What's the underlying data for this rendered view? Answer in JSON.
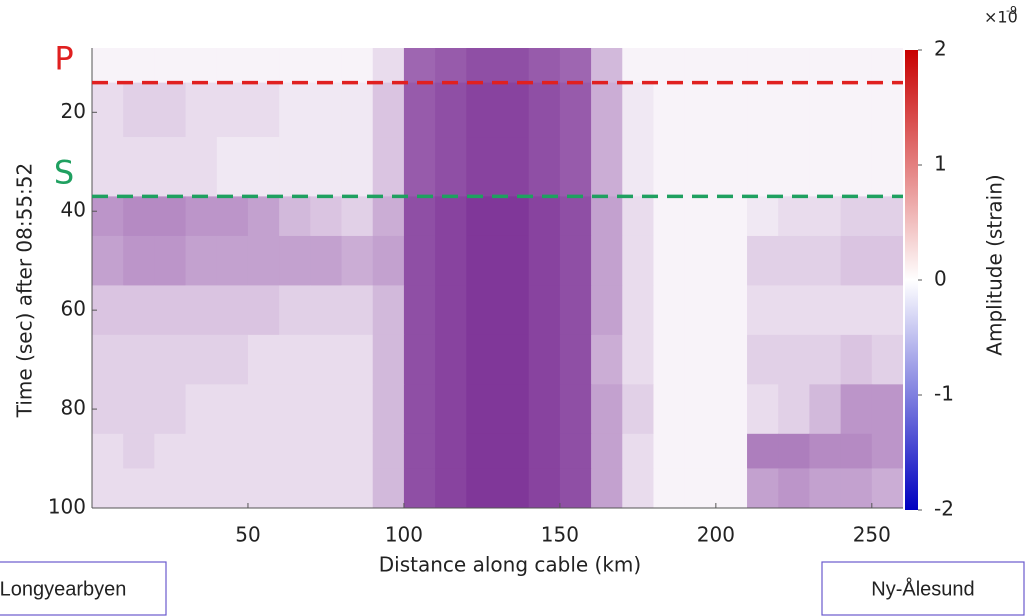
{
  "chart_data": {
    "type": "heatmap",
    "x_label": "Distance along cable (km)",
    "y_label": "Time (sec) after 08:55:52",
    "colorbar_label": "Amplitude (strain)",
    "colorbar_multiplier": "×10",
    "colorbar_exponent": "-9",
    "xlim": [
      0,
      260
    ],
    "ylim": [
      100,
      7
    ],
    "xticks": [
      50,
      100,
      150,
      200,
      250
    ],
    "yticks": [
      20,
      40,
      60,
      80,
      100
    ],
    "clim": [
      -2,
      2
    ],
    "cticks": [
      -2,
      -1,
      0,
      1,
      2
    ],
    "colormap": [
      "#0000c0",
      "#ffffff",
      "#c80000"
    ],
    "cell_color": "#6a1487",
    "x_bins": [
      0,
      10,
      20,
      30,
      40,
      50,
      60,
      70,
      80,
      90,
      100,
      110,
      120,
      130,
      140,
      150,
      160,
      170,
      180,
      190,
      200,
      210,
      220,
      230,
      240,
      250,
      260
    ],
    "y_bins": [
      7,
      14,
      25,
      37,
      45,
      55,
      65,
      75,
      85,
      92,
      100
    ],
    "values": [
      [
        0.1,
        0.1,
        0.1,
        0.1,
        0.1,
        0.1,
        0.1,
        0.1,
        0.1,
        0.3,
        1.3,
        1.4,
        1.5,
        1.5,
        1.4,
        1.3,
        0.6,
        0.1,
        0.1,
        0.1,
        0.1,
        0.1,
        0.1,
        0.1,
        0.1,
        0.1
      ],
      [
        0.3,
        0.4,
        0.4,
        0.3,
        0.3,
        0.3,
        0.2,
        0.2,
        0.2,
        0.5,
        1.4,
        1.5,
        1.6,
        1.6,
        1.5,
        1.4,
        0.7,
        0.2,
        0.1,
        0.1,
        0.1,
        0.1,
        0.1,
        0.1,
        0.1,
        0.1
      ],
      [
        0.3,
        0.3,
        0.3,
        0.3,
        0.2,
        0.2,
        0.2,
        0.2,
        0.2,
        0.5,
        1.4,
        1.5,
        1.6,
        1.6,
        1.5,
        1.4,
        0.7,
        0.2,
        0.1,
        0.1,
        0.1,
        0.1,
        0.1,
        0.1,
        0.1,
        0.1
      ],
      [
        0.9,
        1.0,
        1.0,
        0.9,
        0.9,
        0.8,
        0.6,
        0.5,
        0.4,
        0.7,
        1.5,
        1.6,
        1.7,
        1.7,
        1.6,
        1.5,
        0.8,
        0.3,
        0.1,
        0.1,
        0.1,
        0.2,
        0.3,
        0.3,
        0.4,
        0.4
      ],
      [
        0.8,
        0.9,
        0.9,
        0.8,
        0.8,
        0.8,
        0.8,
        0.8,
        0.7,
        0.8,
        1.5,
        1.6,
        1.7,
        1.7,
        1.6,
        1.5,
        0.8,
        0.3,
        0.1,
        0.1,
        0.1,
        0.4,
        0.4,
        0.4,
        0.5,
        0.5
      ],
      [
        0.5,
        0.5,
        0.5,
        0.5,
        0.5,
        0.5,
        0.4,
        0.4,
        0.4,
        0.6,
        1.5,
        1.6,
        1.7,
        1.7,
        1.6,
        1.5,
        0.8,
        0.3,
        0.1,
        0.1,
        0.1,
        0.3,
        0.3,
        0.3,
        0.3,
        0.3
      ],
      [
        0.4,
        0.4,
        0.4,
        0.4,
        0.4,
        0.3,
        0.3,
        0.3,
        0.3,
        0.6,
        1.5,
        1.6,
        1.7,
        1.7,
        1.6,
        1.5,
        0.7,
        0.3,
        0.1,
        0.1,
        0.1,
        0.4,
        0.4,
        0.4,
        0.5,
        0.4
      ],
      [
        0.4,
        0.4,
        0.4,
        0.3,
        0.3,
        0.3,
        0.3,
        0.3,
        0.3,
        0.6,
        1.5,
        1.6,
        1.7,
        1.7,
        1.6,
        1.5,
        0.8,
        0.4,
        0.1,
        0.1,
        0.1,
        0.3,
        0.4,
        0.6,
        0.9,
        0.9
      ],
      [
        0.3,
        0.4,
        0.3,
        0.3,
        0.3,
        0.3,
        0.3,
        0.3,
        0.3,
        0.6,
        1.5,
        1.6,
        1.7,
        1.7,
        1.6,
        1.5,
        0.8,
        0.3,
        0.1,
        0.1,
        0.1,
        1.1,
        1.1,
        1.0,
        1.0,
        0.9
      ],
      [
        0.3,
        0.3,
        0.3,
        0.3,
        0.3,
        0.3,
        0.3,
        0.3,
        0.3,
        0.6,
        1.5,
        1.6,
        1.7,
        1.7,
        1.6,
        1.5,
        0.8,
        0.3,
        0.1,
        0.1,
        0.1,
        0.8,
        0.9,
        0.8,
        0.8,
        0.7
      ]
    ],
    "annotations": [
      {
        "text": "P",
        "value": 14,
        "color": "#e02020"
      },
      {
        "text": "S",
        "value": 37,
        "color": "#1fa060"
      }
    ],
    "station_labels": [
      "Longyearbyen",
      "Ny-Ålesund"
    ]
  }
}
